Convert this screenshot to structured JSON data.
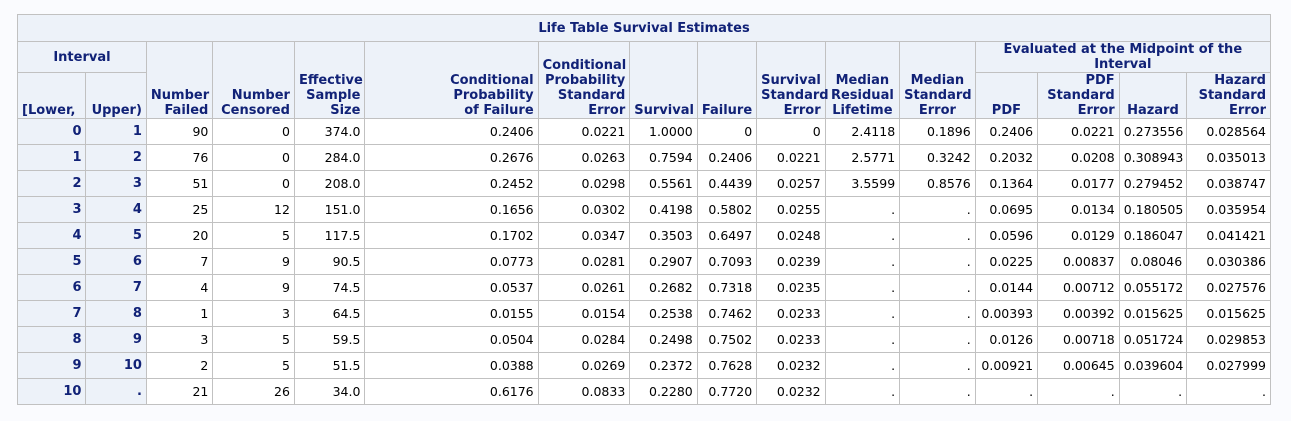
{
  "table": {
    "title": "Life Table Survival Estimates",
    "interval_group": "Interval",
    "midpoint_group": "Evaluated at the Midpoint of the Interval",
    "columns": {
      "lower": "[Lower,",
      "upper": "Upper)",
      "failed": [
        "Number",
        "Failed"
      ],
      "censored": [
        "Number",
        "Censored"
      ],
      "eff": [
        "Effective",
        "Sample",
        "Size"
      ],
      "cpf": [
        "Conditional Probability",
        "of Failure"
      ],
      "cpse": [
        "Conditional",
        "Probability",
        "Standard",
        "Error"
      ],
      "survival": [
        "Survival"
      ],
      "failure": [
        "Failure"
      ],
      "sse": [
        "Survival",
        "Standard",
        "Error"
      ],
      "mrl": [
        "Median",
        "Residual",
        "Lifetime"
      ],
      "mse": [
        "Median",
        "Standard",
        "Error"
      ],
      "pdf": [
        "PDF"
      ],
      "pdfse": [
        "PDF",
        "Standard",
        "Error"
      ],
      "hazard": [
        "Hazard"
      ],
      "hse": [
        "Hazard",
        "Standard",
        "Error"
      ]
    },
    "rows": [
      [
        "0",
        "1",
        "90",
        "0",
        "374.0",
        "0.2406",
        "0.0221",
        "1.0000",
        "0",
        "0",
        "2.4118",
        "0.1896",
        "0.2406",
        "0.0221",
        "0.273556",
        "0.028564"
      ],
      [
        "1",
        "2",
        "76",
        "0",
        "284.0",
        "0.2676",
        "0.0263",
        "0.7594",
        "0.2406",
        "0.0221",
        "2.5771",
        "0.3242",
        "0.2032",
        "0.0208",
        "0.308943",
        "0.035013"
      ],
      [
        "2",
        "3",
        "51",
        "0",
        "208.0",
        "0.2452",
        "0.0298",
        "0.5561",
        "0.4439",
        "0.0257",
        "3.5599",
        "0.8576",
        "0.1364",
        "0.0177",
        "0.279452",
        "0.038747"
      ],
      [
        "3",
        "4",
        "25",
        "12",
        "151.0",
        "0.1656",
        "0.0302",
        "0.4198",
        "0.5802",
        "0.0255",
        ".",
        ".",
        "0.0695",
        "0.0134",
        "0.180505",
        "0.035954"
      ],
      [
        "4",
        "5",
        "20",
        "5",
        "117.5",
        "0.1702",
        "0.0347",
        "0.3503",
        "0.6497",
        "0.0248",
        ".",
        ".",
        "0.0596",
        "0.0129",
        "0.186047",
        "0.041421"
      ],
      [
        "5",
        "6",
        "7",
        "9",
        "90.5",
        "0.0773",
        "0.0281",
        "0.2907",
        "0.7093",
        "0.0239",
        ".",
        ".",
        "0.0225",
        "0.00837",
        "0.08046",
        "0.030386"
      ],
      [
        "6",
        "7",
        "4",
        "9",
        "74.5",
        "0.0537",
        "0.0261",
        "0.2682",
        "0.7318",
        "0.0235",
        ".",
        ".",
        "0.0144",
        "0.00712",
        "0.055172",
        "0.027576"
      ],
      [
        "7",
        "8",
        "1",
        "3",
        "64.5",
        "0.0155",
        "0.0154",
        "0.2538",
        "0.7462",
        "0.0233",
        ".",
        ".",
        "0.00393",
        "0.00392",
        "0.015625",
        "0.015625"
      ],
      [
        "8",
        "9",
        "3",
        "5",
        "59.5",
        "0.0504",
        "0.0284",
        "0.2498",
        "0.7502",
        "0.0233",
        ".",
        ".",
        "0.0126",
        "0.00718",
        "0.051724",
        "0.029853"
      ],
      [
        "9",
        "10",
        "2",
        "5",
        "51.5",
        "0.0388",
        "0.0269",
        "0.2372",
        "0.7628",
        "0.0232",
        ".",
        ".",
        "0.00921",
        "0.00645",
        "0.039604",
        "0.027999"
      ],
      [
        "10",
        ".",
        "21",
        "26",
        "34.0",
        "0.6176",
        "0.0833",
        "0.2280",
        "0.7720",
        "0.0232",
        ".",
        ".",
        ".",
        ".",
        ".",
        "."
      ]
    ]
  }
}
